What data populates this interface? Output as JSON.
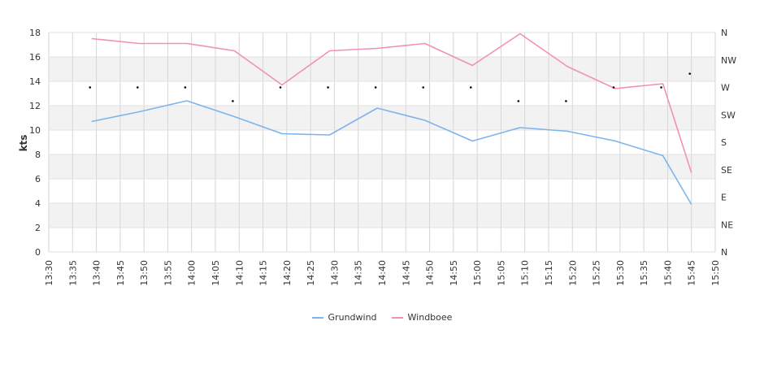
{
  "chart_data": {
    "type": "line",
    "ylabel": "kts",
    "ylim": [
      0,
      18
    ],
    "y_ticks": [
      "0",
      "2",
      "4",
      "6",
      "8",
      "10",
      "12",
      "14",
      "16",
      "18"
    ],
    "direction_ticks": [
      "N",
      "NE",
      "E",
      "SE",
      "S",
      "SW",
      "W",
      "NW",
      "N"
    ],
    "x_ticks": [
      "13:30",
      "13:35",
      "13:40",
      "13:45",
      "13:50",
      "13:55",
      "14:00",
      "14:05",
      "14:10",
      "14:15",
      "14:20",
      "14:25",
      "14:30",
      "14:35",
      "14:40",
      "14:45",
      "14:50",
      "14:55",
      "15:00",
      "15:05",
      "15:10",
      "15:15",
      "15:20",
      "15:25",
      "15:30",
      "15:35",
      "15:40",
      "15:45",
      "15:50"
    ],
    "x": [
      "13:39",
      "13:49",
      "13:59",
      "14:09",
      "14:19",
      "14:29",
      "14:39",
      "14:49",
      "14:59",
      "15:09",
      "15:19",
      "15:29",
      "15:39",
      "15:45"
    ],
    "series": [
      {
        "name": "Grundwind",
        "color": "#7cb5ec",
        "values": [
          10.7,
          11.5,
          12.4,
          11.1,
          9.7,
          9.6,
          11.8,
          10.8,
          9.1,
          10.2,
          9.9,
          9.1,
          7.9,
          3.9
        ]
      },
      {
        "name": "Windboee",
        "color": "#f28fbc",
        "values": [
          17.5,
          17.1,
          17.1,
          16.5,
          13.7,
          16.5,
          16.7,
          17.1,
          15.3,
          17.9,
          15.2,
          13.4,
          13.8,
          6.5
        ]
      }
    ],
    "direction": {
      "x": [
        "13:39",
        "13:49",
        "13:59",
        "14:09",
        "14:19",
        "14:29",
        "14:39",
        "14:49",
        "14:59",
        "15:09",
        "15:19",
        "15:29",
        "15:39",
        "15:45"
      ],
      "values": [
        "W",
        "W",
        "W",
        "WSW",
        "W",
        "W",
        "W",
        "W",
        "W",
        "WSW",
        "WSW",
        "W",
        "W",
        "WNW"
      ]
    },
    "grid": true,
    "legend_position": "bottom"
  }
}
